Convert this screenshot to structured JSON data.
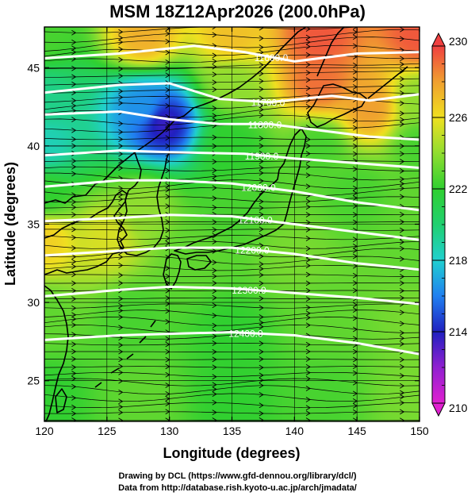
{
  "title": "MSM 18Z12Apr2026 (200.0hPa)",
  "credits": [
    "Drawing by DCL (https://www.gfd-dennou.org/library/dcl/)",
    "Data from http://database.rish.kyoto-u.ac.jp/arch/jmadata/"
  ],
  "chart_data": {
    "type": "heatmap",
    "title": "MSM 18Z12Apr2026 (200.0hPa)",
    "xlabel": "Longitude (degrees)",
    "ylabel": "Latitude  (degrees)",
    "xlim": [
      120,
      150
    ],
    "ylim": [
      22.4,
      47.6
    ],
    "xticks": [
      120,
      125,
      130,
      135,
      140,
      145,
      150
    ],
    "yticks": [
      25,
      30,
      35,
      40,
      45
    ],
    "colorbar": {
      "range": [
        210,
        230
      ],
      "ticks": [
        210,
        214,
        218,
        222,
        226,
        230
      ],
      "stops": [
        {
          "v": 210,
          "color": "#e020d0"
        },
        {
          "v": 212,
          "color": "#9020d0"
        },
        {
          "v": 214,
          "color": "#2020c0"
        },
        {
          "v": 216,
          "color": "#2080f0"
        },
        {
          "v": 218,
          "color": "#20d0d0"
        },
        {
          "v": 220,
          "color": "#20d070"
        },
        {
          "v": 222,
          "color": "#30d030"
        },
        {
          "v": 224,
          "color": "#90dd30"
        },
        {
          "v": 226,
          "color": "#f0e020"
        },
        {
          "v": 228,
          "color": "#f0a030"
        },
        {
          "v": 230,
          "color": "#f04040"
        }
      ]
    },
    "temperature_field_anchors": [
      {
        "lon": 120,
        "lat": 47,
        "v": 222.5
      },
      {
        "lon": 128,
        "lat": 47,
        "v": 227.5
      },
      {
        "lon": 135,
        "lat": 47,
        "v": 227
      },
      {
        "lon": 142,
        "lat": 47,
        "v": 229.5
      },
      {
        "lon": 150,
        "lat": 47,
        "v": 229.5
      },
      {
        "lon": 120,
        "lat": 43,
        "v": 219.5
      },
      {
        "lon": 128,
        "lat": 42.5,
        "v": 216.5
      },
      {
        "lon": 135,
        "lat": 44,
        "v": 224
      },
      {
        "lon": 142,
        "lat": 44,
        "v": 229
      },
      {
        "lon": 146,
        "lat": 42.5,
        "v": 228
      },
      {
        "lon": 150,
        "lat": 43,
        "v": 224
      },
      {
        "lon": 120,
        "lat": 40,
        "v": 218.5
      },
      {
        "lon": 129.5,
        "lat": 41.5,
        "v": 213.5
      },
      {
        "lon": 135,
        "lat": 40,
        "v": 222
      },
      {
        "lon": 142,
        "lat": 40,
        "v": 222.5
      },
      {
        "lon": 150,
        "lat": 40,
        "v": 222.5
      },
      {
        "lon": 120,
        "lat": 37,
        "v": 222
      },
      {
        "lon": 128,
        "lat": 36,
        "v": 224
      },
      {
        "lon": 135,
        "lat": 36,
        "v": 222.5
      },
      {
        "lon": 145,
        "lat": 37,
        "v": 222.5
      },
      {
        "lon": 150,
        "lat": 36,
        "v": 223
      },
      {
        "lon": 120,
        "lat": 34,
        "v": 226.5
      },
      {
        "lon": 125,
        "lat": 34,
        "v": 225.5
      },
      {
        "lon": 132,
        "lat": 33,
        "v": 223
      },
      {
        "lon": 140,
        "lat": 33,
        "v": 223.5
      },
      {
        "lon": 150,
        "lat": 33,
        "v": 223
      },
      {
        "lon": 120,
        "lat": 29,
        "v": 223
      },
      {
        "lon": 127,
        "lat": 29,
        "v": 222.5
      },
      {
        "lon": 135,
        "lat": 28,
        "v": 222
      },
      {
        "lon": 142,
        "lat": 29,
        "v": 223
      },
      {
        "lon": 150,
        "lat": 29,
        "v": 223.5
      },
      {
        "lon": 120,
        "lat": 24,
        "v": 222
      },
      {
        "lon": 128,
        "lat": 24,
        "v": 223
      },
      {
        "lon": 135,
        "lat": 24,
        "v": 222
      },
      {
        "lon": 142,
        "lat": 24,
        "v": 222.5
      },
      {
        "lon": 150,
        "lat": 24,
        "v": 223.5
      }
    ],
    "height_contours": [
      {
        "label": "11600.0",
        "points": [
          [
            120,
            45.6
          ],
          [
            126,
            45.9
          ],
          [
            132,
            46.4
          ],
          [
            136,
            46.0
          ],
          [
            140,
            45.4
          ],
          [
            145,
            45.9
          ],
          [
            150,
            46.0
          ]
        ]
      },
      {
        "label": "11700.0",
        "points": [
          [
            120,
            43.4
          ],
          [
            126,
            43.9
          ],
          [
            130,
            44.0
          ],
          [
            134,
            43.0
          ],
          [
            138,
            42.8
          ],
          [
            143,
            43.2
          ],
          [
            146,
            42.9
          ],
          [
            150,
            43.3
          ]
        ]
      },
      {
        "label": "11800.0",
        "points": [
          [
            120,
            42.0
          ],
          [
            126,
            42.2
          ],
          [
            130,
            41.7
          ],
          [
            134,
            41.4
          ],
          [
            138,
            41.4
          ],
          [
            142,
            41.0
          ],
          [
            146,
            40.6
          ],
          [
            150,
            40.4
          ]
        ]
      },
      {
        "label": "11900.0",
        "points": [
          [
            120,
            39.4
          ],
          [
            126,
            39.7
          ],
          [
            130,
            39.6
          ],
          [
            136,
            39.5
          ],
          [
            140,
            39.2
          ],
          [
            145,
            38.9
          ],
          [
            150,
            38.6
          ]
        ]
      },
      {
        "label": "12000.0",
        "points": [
          [
            120,
            37.4
          ],
          [
            126,
            37.8
          ],
          [
            130,
            37.8
          ],
          [
            135,
            37.6
          ],
          [
            140,
            37.1
          ],
          [
            145,
            36.4
          ],
          [
            150,
            35.9
          ]
        ]
      },
      {
        "label": "12100.0",
        "points": [
          [
            120,
            35.2
          ],
          [
            126,
            35.4
          ],
          [
            130,
            35.6
          ],
          [
            135,
            35.5
          ],
          [
            140,
            35.0
          ],
          [
            145,
            34.5
          ],
          [
            150,
            34.0
          ]
        ]
      },
      {
        "label": "12200.0",
        "points": [
          [
            120,
            33.0
          ],
          [
            126,
            33.3
          ],
          [
            130,
            33.5
          ],
          [
            135,
            33.5
          ],
          [
            140,
            33.1
          ],
          [
            145,
            32.5
          ],
          [
            150,
            32.1
          ]
        ]
      },
      {
        "label": "12300.0",
        "points": [
          [
            120,
            30.4
          ],
          [
            126,
            30.8
          ],
          [
            130,
            31.0
          ],
          [
            135,
            30.9
          ],
          [
            140,
            30.6
          ],
          [
            145,
            30.3
          ],
          [
            150,
            29.9
          ]
        ]
      },
      {
        "label": "12400.0",
        "points": [
          [
            120,
            27.6
          ],
          [
            126,
            27.9
          ],
          [
            130,
            28.0
          ],
          [
            135,
            28.1
          ],
          [
            140,
            27.9
          ],
          [
            145,
            27.4
          ],
          [
            150,
            26.7
          ]
        ]
      }
    ]
  }
}
